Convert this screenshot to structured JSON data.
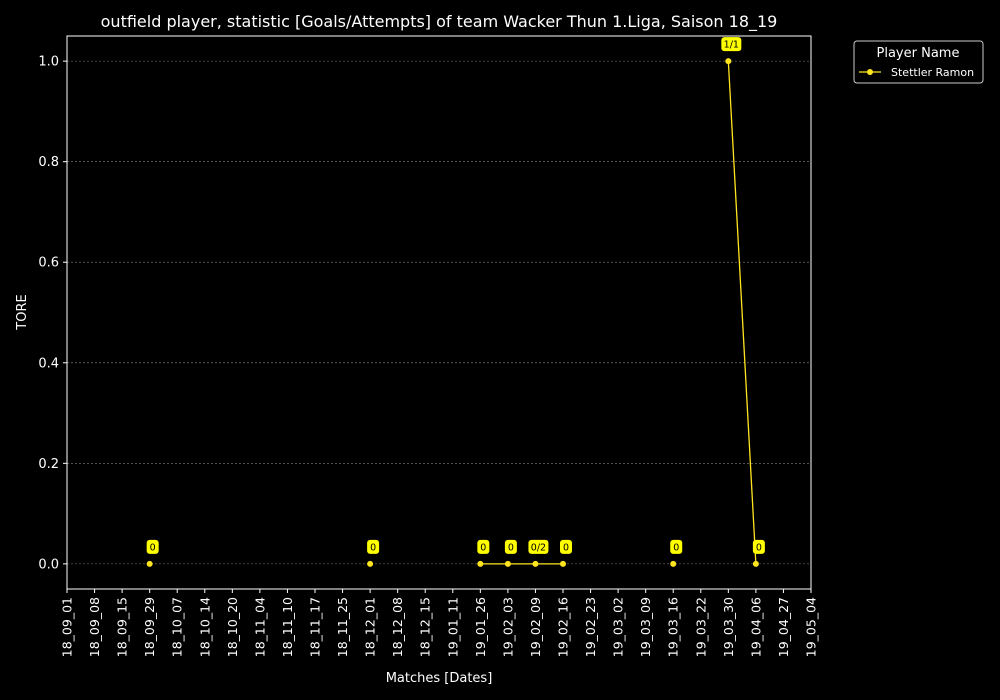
{
  "chart_data": {
    "type": "line",
    "title": "outfield player, statistic [Goals/Attempts] of team Wacker Thun 1.Liga, Saison 18_19",
    "xlabel": "Matches [Dates]",
    "ylabel": "TORE",
    "ylim": [
      -0.05,
      1.05
    ],
    "yticks": [
      "0.0",
      "0.2",
      "0.4",
      "0.6",
      "0.8",
      "1.0"
    ],
    "ytick_values": [
      0,
      0.2,
      0.4,
      0.6,
      0.8,
      1.0
    ],
    "xticks": [
      "18_09_01",
      "18_09_08",
      "18_09_15",
      "18_09_29",
      "18_10_07",
      "18_10_14",
      "18_10_20",
      "18_11_04",
      "18_11_10",
      "18_11_17",
      "18_11_25",
      "18_12_01",
      "18_12_08",
      "18_12_15",
      "19_01_11",
      "19_01_26",
      "19_02_03",
      "19_02_09",
      "19_02_16",
      "19_02_23",
      "19_03_02",
      "19_03_09",
      "19_03_16",
      "19_03_22",
      "19_03_30",
      "19_04_06",
      "19_04_27",
      "19_05_04"
    ],
    "grid": "horizontal",
    "legend": {
      "title": "Player Name",
      "position": "outside-top-right"
    },
    "series": [
      {
        "name": "Stettler Ramon",
        "color": "#FFE51F",
        "points": [
          {
            "x": "18_09_29",
            "y": 0,
            "label": "0",
            "connected": false
          },
          {
            "x": "18_12_01",
            "y": 0,
            "label": "0",
            "connected": false
          },
          {
            "x": "19_01_26",
            "y": 0,
            "label": "0",
            "connected": true
          },
          {
            "x": "19_02_03",
            "y": 0,
            "label": "0",
            "connected": true
          },
          {
            "x": "19_02_09",
            "y": 0,
            "label": "0/2",
            "connected": true
          },
          {
            "x": "19_02_16",
            "y": 0,
            "label": "0",
            "connected": true
          },
          {
            "x": "19_03_16",
            "y": 0,
            "label": "0",
            "connected": false
          },
          {
            "x": "19_03_30",
            "y": 1.0,
            "label": "1/1",
            "connected": true
          },
          {
            "x": "19_04_06",
            "y": 0,
            "label": "0",
            "connected": true
          }
        ]
      }
    ]
  },
  "colors": {
    "background": "#000000",
    "axis": "#FFFFFF",
    "grid": "#888888",
    "line": "#FFE51F",
    "label_box": "#FFFF00"
  }
}
